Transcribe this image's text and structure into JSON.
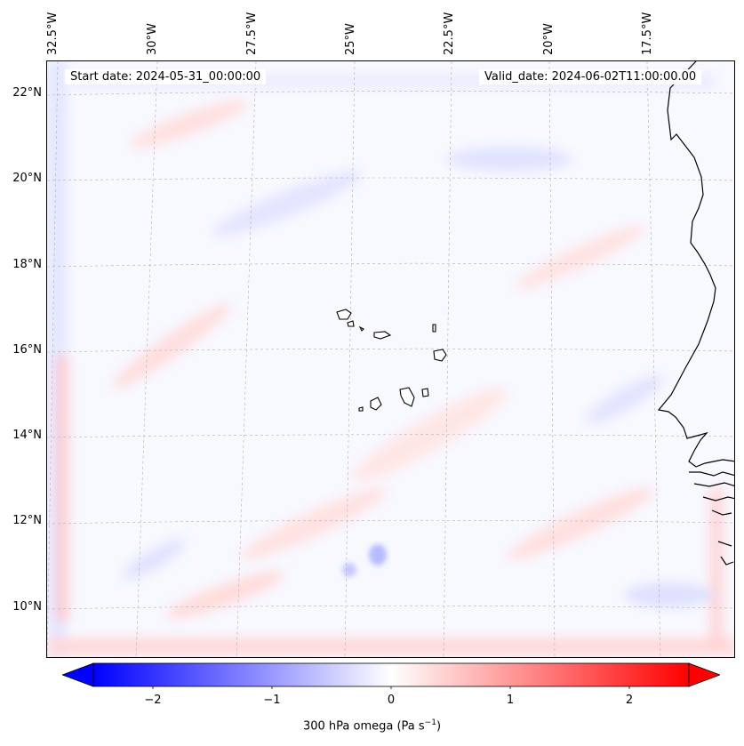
{
  "header": {
    "start_date": "Start date: 2024-05-31_00:00:00",
    "valid_date": "Valid_date: 2024-06-02T11:00:00.00"
  },
  "axes": {
    "longitude_labels": [
      "32.5°W",
      "30°W",
      "27.5°W",
      "25°W",
      "22.5°W",
      "20°W",
      "17.5°W"
    ],
    "latitude_labels": [
      "22°N",
      "20°N",
      "18°N",
      "16°N",
      "14°N",
      "12°N",
      "10°N"
    ]
  },
  "colorbar": {
    "ticks": [
      "−2",
      "−1",
      "0",
      "1",
      "2"
    ],
    "range": [
      -2.5,
      2.5
    ],
    "label": "300 hPa omega (Pa s",
    "label_exponent": "−1",
    "label_close": ")",
    "colors": {
      "negative": "#0000ff",
      "zero": "#ffffff",
      "positive": "#ff0000"
    }
  },
  "map": {
    "field": "300 hPa omega",
    "colors": {
      "coast": "#000000",
      "grid": "#b0b0b0"
    }
  }
}
